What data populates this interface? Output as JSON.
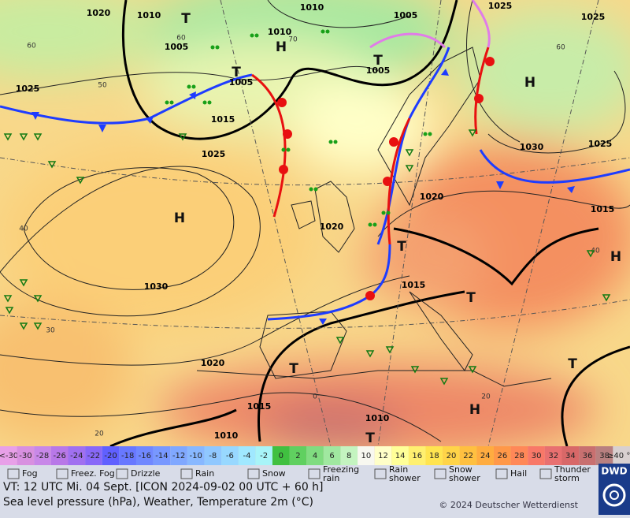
{
  "map": {
    "pressure_labels": [
      "1020",
      "1010",
      "1010",
      "1005",
      "1025",
      "1025",
      "1005",
      "1010",
      "1005",
      "1005",
      "1025",
      "1015",
      "1025",
      "1030",
      "1025",
      "1020",
      "1020",
      "1015",
      "1030",
      "1015",
      "1020",
      "1015",
      "1010",
      "1010"
    ],
    "temperature_labels": [
      "60",
      "70",
      "60",
      "50",
      "60",
      "40",
      "30",
      "20",
      "0",
      "20",
      "40"
    ],
    "high_labels": [
      "H",
      "H",
      "H",
      "H",
      "H"
    ],
    "low_labels": [
      "T",
      "T",
      "T",
      "T",
      "T",
      "T",
      "T",
      "T"
    ]
  },
  "legend": {
    "scale": [
      {
        "label": "<-30",
        "color": "#e8a0e8"
      },
      {
        "label": "-30",
        "color": "#d890e0"
      },
      {
        "label": "-28",
        "color": "#c888e8"
      },
      {
        "label": "-26",
        "color": "#b878e8"
      },
      {
        "label": "-24",
        "color": "#a070f0"
      },
      {
        "label": "-22",
        "color": "#8868f8"
      },
      {
        "label": "-20",
        "color": "#6060ff"
      },
      {
        "label": "-18",
        "color": "#6878ff"
      },
      {
        "label": "-16",
        "color": "#7088ff"
      },
      {
        "label": "-14",
        "color": "#7898ff"
      },
      {
        "label": "-12",
        "color": "#80a8ff"
      },
      {
        "label": "-10",
        "color": "#88b8ff"
      },
      {
        "label": "-8",
        "color": "#90c8ff"
      },
      {
        "label": "-6",
        "color": "#98d8ff"
      },
      {
        "label": "-4",
        "color": "#a0e8ff"
      },
      {
        "label": "-2",
        "color": "#a8f4f8"
      },
      {
        "label": "0",
        "color": "#40c040"
      },
      {
        "label": "2",
        "color": "#60d060"
      },
      {
        "label": "4",
        "color": "#80dc80"
      },
      {
        "label": "6",
        "color": "#a0e8a0"
      },
      {
        "label": "8",
        "color": "#c4f4c0"
      },
      {
        "label": "10",
        "color": "#f8f8f0"
      },
      {
        "label": "12",
        "color": "#ffffc8"
      },
      {
        "label": "14",
        "color": "#ffff98"
      },
      {
        "label": "16",
        "color": "#fff070"
      },
      {
        "label": "18",
        "color": "#ffe450"
      },
      {
        "label": "20",
        "color": "#ffd448"
      },
      {
        "label": "22",
        "color": "#ffc040"
      },
      {
        "label": "24",
        "color": "#ffac40"
      },
      {
        "label": "26",
        "color": "#ff9848"
      },
      {
        "label": "28",
        "color": "#ff8858"
      },
      {
        "label": "30",
        "color": "#f87868"
      },
      {
        "label": "32",
        "color": "#e87070"
      },
      {
        "label": "34",
        "color": "#d86868"
      },
      {
        "label": "36",
        "color": "#c87070"
      },
      {
        "label": "38",
        "color": "#b88080"
      },
      {
        "label": "≥40 °C",
        "color": "#d8d0d0"
      }
    ],
    "items": [
      "Fog",
      "Freez. Fog",
      "Drizzle",
      "Rain",
      "Snow",
      "Freezing rain",
      "Rain shower",
      "Snow shower",
      "Hail",
      "Thunder storm"
    ]
  },
  "footer": {
    "valid_time": "VT: 12 UTC Mi.  04 Sept. [ICON 2024-09-02  00 UTC + 60 h]",
    "description": "Sea level pressure (hPa), Weather, Temperature 2m (°C)",
    "copyright": "© 2024 Deutscher Wetterdienst",
    "logo": "DWD"
  }
}
